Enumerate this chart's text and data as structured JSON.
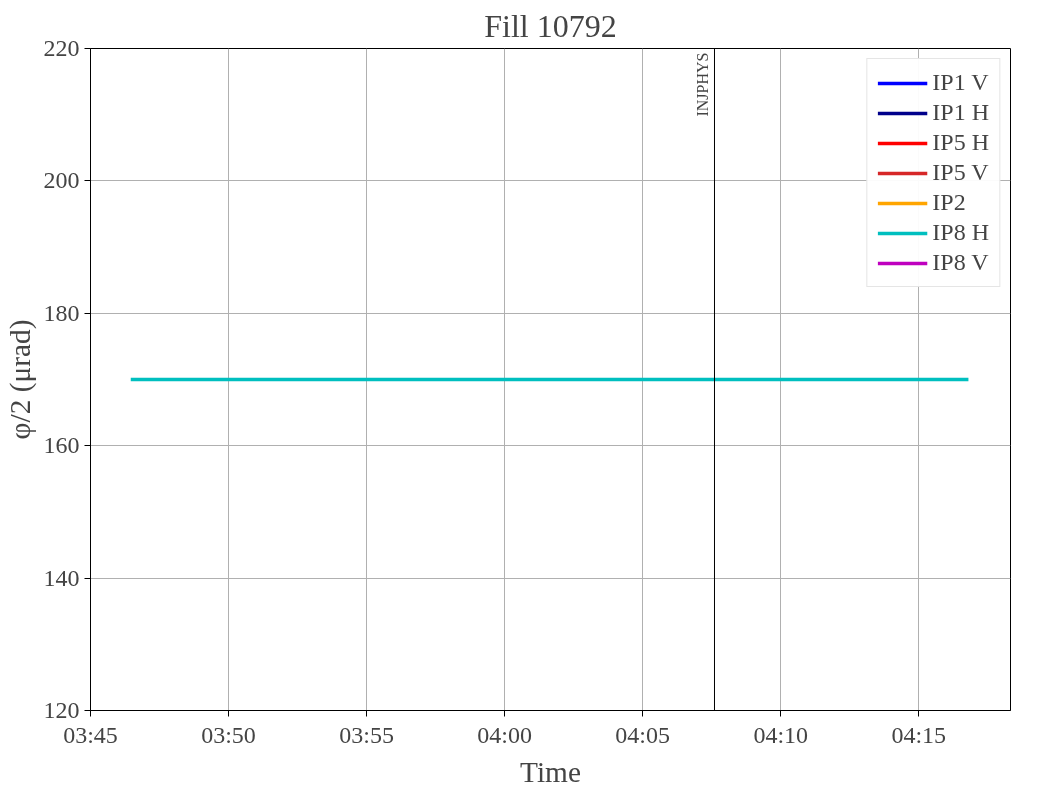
{
  "chart_data": {
    "type": "line",
    "title": "Fill 10792",
    "xlabel": "Time",
    "ylabel": "φ/2 (μrad)",
    "x": [
      3.7743,
      4.28
    ],
    "series": [
      {
        "name": "IP1 V",
        "color": "#0000ff",
        "values": [
          null,
          null
        ]
      },
      {
        "name": "IP1 H",
        "color": "#00008b",
        "values": [
          null,
          null
        ]
      },
      {
        "name": "IP5 H",
        "color": "#ff0000",
        "values": [
          null,
          null
        ]
      },
      {
        "name": "IP5 V",
        "color": "#d62728",
        "values": [
          null,
          null
        ]
      },
      {
        "name": "IP2",
        "color": "#ffa500",
        "values": [
          null,
          null
        ]
      },
      {
        "name": "IP8 H",
        "color": "#00bfbf",
        "values": [
          170,
          170
        ]
      },
      {
        "name": "IP8 V",
        "color": "#bf00bf",
        "values": [
          null,
          null
        ]
      }
    ],
    "xlim": [
      3.75,
      4.3054
    ],
    "ylim": [
      120,
      220
    ],
    "xticks": [
      {
        "value": 3.75,
        "label": "03:45"
      },
      {
        "value": 3.8333,
        "label": "03:50"
      },
      {
        "value": 3.9167,
        "label": "03:55"
      },
      {
        "value": 4.0,
        "label": "04:00"
      },
      {
        "value": 4.0833,
        "label": "04:05"
      },
      {
        "value": 4.1667,
        "label": "04:10"
      },
      {
        "value": 4.25,
        "label": "04:15"
      }
    ],
    "yticks": [
      120,
      140,
      160,
      180,
      200,
      220
    ],
    "ref_lines": [
      {
        "axis": "x",
        "value": 4.1267,
        "label": "INJPHYS",
        "color": "#000000"
      }
    ],
    "grid": true,
    "legend": "top right",
    "line_style": "solid"
  }
}
